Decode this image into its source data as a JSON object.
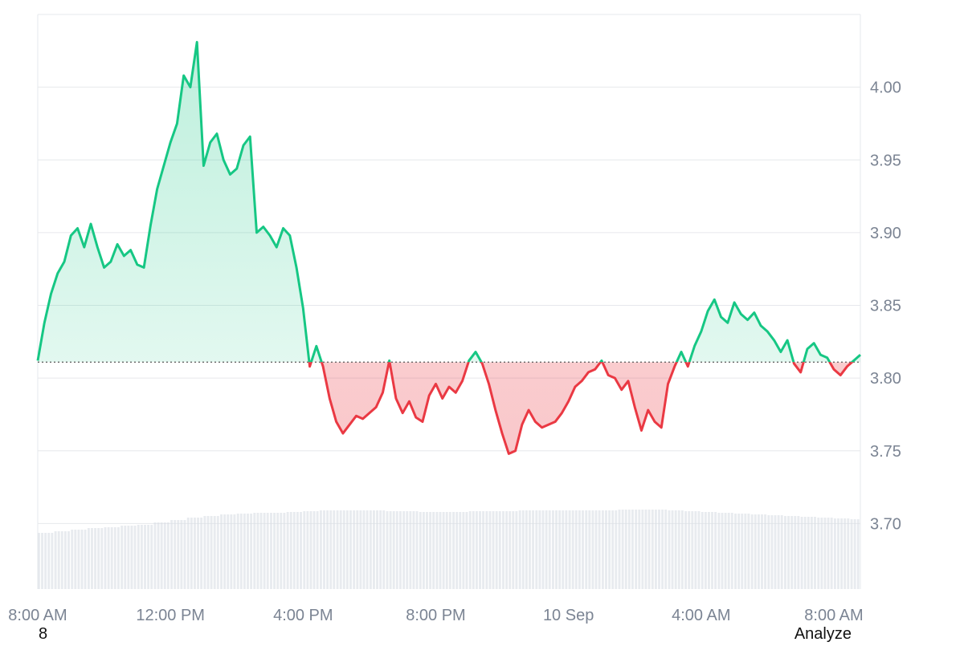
{
  "chart_data": {
    "type": "area",
    "baseline": 3.811,
    "ylim": [
      3.655,
      4.05
    ],
    "y_ticks": [
      "4.00",
      "3.95",
      "3.90",
      "3.85",
      "3.80",
      "3.75",
      "3.70"
    ],
    "x_ticks": [
      "8:00 AM",
      "12:00 PM",
      "4:00 PM",
      "8:00 PM",
      "10 Sep",
      "4:00 AM",
      "8:00 AM"
    ],
    "x_hours_range": [
      0,
      24.8
    ],
    "x_tick_hours": [
      0,
      4,
      8,
      12,
      16,
      20,
      24
    ],
    "price": {
      "x_hours": [
        0,
        0.2,
        0.4,
        0.6,
        0.8,
        1.0,
        1.2,
        1.4,
        1.6,
        1.8,
        2.0,
        2.2,
        2.4,
        2.6,
        2.8,
        3.0,
        3.2,
        3.4,
        3.6,
        3.8,
        4.0,
        4.2,
        4.4,
        4.6,
        4.8,
        5.0,
        5.2,
        5.4,
        5.6,
        5.8,
        6.0,
        6.2,
        6.4,
        6.6,
        6.8,
        7.0,
        7.2,
        7.4,
        7.6,
        7.8,
        8.0,
        8.2,
        8.4,
        8.6,
        8.8,
        9.0,
        9.2,
        9.4,
        9.6,
        9.8,
        10.0,
        10.2,
        10.4,
        10.6,
        10.8,
        11.0,
        11.2,
        11.4,
        11.6,
        11.8,
        12.0,
        12.2,
        12.4,
        12.6,
        12.8,
        13.0,
        13.2,
        13.4,
        13.6,
        13.8,
        14.0,
        14.2,
        14.4,
        14.6,
        14.8,
        15.0,
        15.2,
        15.4,
        15.6,
        15.8,
        16.0,
        16.2,
        16.4,
        16.6,
        16.8,
        17.0,
        17.2,
        17.4,
        17.6,
        17.8,
        18.0,
        18.2,
        18.4,
        18.6,
        18.8,
        19.0,
        19.2,
        19.4,
        19.6,
        19.8,
        20.0,
        20.2,
        20.4,
        20.6,
        20.8,
        21.0,
        21.2,
        21.4,
        21.6,
        21.8,
        22.0,
        22.2,
        22.4,
        22.6,
        22.8,
        23.0,
        23.2,
        23.4,
        23.6,
        23.8,
        24.0,
        24.2,
        24.4,
        24.6,
        24.8
      ],
      "values": [
        3.812,
        3.838,
        3.858,
        3.872,
        3.88,
        3.898,
        3.903,
        3.89,
        3.906,
        3.89,
        3.876,
        3.88,
        3.892,
        3.884,
        3.888,
        3.878,
        3.876,
        3.905,
        3.93,
        3.946,
        3.962,
        3.975,
        4.008,
        4.0,
        4.031,
        3.946,
        3.962,
        3.968,
        3.95,
        3.94,
        3.944,
        3.96,
        3.966,
        3.9,
        3.904,
        3.898,
        3.89,
        3.903,
        3.898,
        3.876,
        3.848,
        3.808,
        3.822,
        3.808,
        3.786,
        3.77,
        3.762,
        3.768,
        3.774,
        3.772,
        3.776,
        3.78,
        3.79,
        3.812,
        3.786,
        3.776,
        3.784,
        3.773,
        3.77,
        3.788,
        3.796,
        3.786,
        3.794,
        3.79,
        3.798,
        3.812,
        3.818,
        3.81,
        3.796,
        3.778,
        3.762,
        3.748,
        3.75,
        3.768,
        3.778,
        3.77,
        3.766,
        3.768,
        3.77,
        3.776,
        3.784,
        3.794,
        3.798,
        3.804,
        3.806,
        3.812,
        3.802,
        3.8,
        3.792,
        3.798,
        3.78,
        3.764,
        3.778,
        3.77,
        3.766,
        3.796,
        3.808,
        3.818,
        3.808,
        3.822,
        3.832,
        3.846,
        3.854,
        3.842,
        3.838,
        3.852,
        3.844,
        3.84,
        3.845,
        3.836,
        3.832,
        3.826,
        3.818,
        3.826,
        3.81,
        3.804,
        3.82,
        3.824,
        3.816,
        3.814,
        3.806,
        3.802,
        3.808,
        3.812,
        3.816
      ]
    },
    "volume": {
      "x_hours": [
        0,
        0.5,
        1.0,
        1.5,
        2.0,
        2.5,
        3.0,
        3.5,
        4.0,
        4.5,
        5.0,
        5.5,
        6.0,
        6.5,
        7.0,
        7.5,
        8.0,
        8.5,
        9.0,
        9.5,
        10.0,
        10.5,
        11.0,
        11.5,
        12.0,
        12.5,
        13.0,
        13.5,
        14.0,
        14.5,
        15.0,
        15.5,
        16.0,
        16.5,
        17.0,
        17.5,
        18.0,
        18.5,
        19.0,
        19.5,
        20.0,
        20.5,
        21.0,
        21.5,
        22.0,
        22.5,
        23.0,
        23.5,
        24.0,
        24.5
      ],
      "relative": [
        0.7,
        0.72,
        0.74,
        0.76,
        0.77,
        0.79,
        0.8,
        0.83,
        0.86,
        0.89,
        0.91,
        0.93,
        0.94,
        0.95,
        0.95,
        0.96,
        0.97,
        0.98,
        0.98,
        0.98,
        0.98,
        0.97,
        0.97,
        0.96,
        0.96,
        0.96,
        0.97,
        0.97,
        0.97,
        0.98,
        0.98,
        0.98,
        0.98,
        0.98,
        0.98,
        0.99,
        0.99,
        0.99,
        0.98,
        0.97,
        0.96,
        0.95,
        0.94,
        0.93,
        0.92,
        0.91,
        0.9,
        0.89,
        0.88,
        0.87
      ]
    },
    "colors": {
      "up": "#16c784",
      "down": "#ea3943",
      "up_fill": "#16c784",
      "down_fill": "#ea3943",
      "grid": "#e6e8ec",
      "axis_text": "#7b8493",
      "volume": "#d9dee5"
    }
  },
  "footer": {
    "left_text": "8",
    "right_text": "Analyze"
  }
}
